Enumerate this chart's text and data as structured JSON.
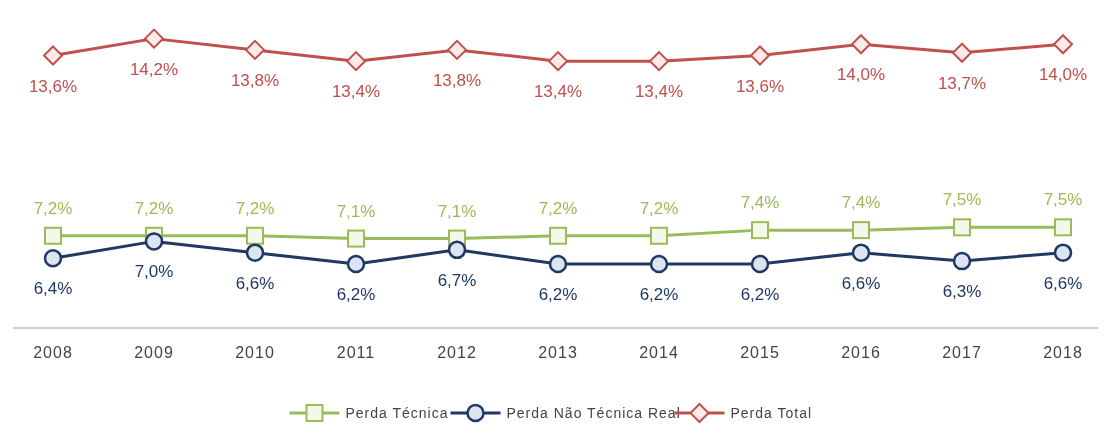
{
  "chart_data": {
    "type": "line",
    "categories": [
      "2008",
      "2009",
      "2010",
      "2011",
      "2012",
      "2013",
      "2014",
      "2015",
      "2016",
      "2017",
      "2018"
    ],
    "series": [
      {
        "name": "Perda Técnica",
        "color": "#9bbb59",
        "marker": "square",
        "values": [
          7.2,
          7.2,
          7.2,
          7.1,
          7.1,
          7.2,
          7.2,
          7.4,
          7.4,
          7.5,
          7.5
        ],
        "value_labels": [
          "7,2%",
          "7,2%",
          "7,2%",
          "7,1%",
          "7,1%",
          "7,2%",
          "7,2%",
          "7,4%",
          "7,4%",
          "7,5%",
          "7,5%"
        ]
      },
      {
        "name": "Perda Não Técnica Real",
        "color": "#1f3864",
        "marker": "circle",
        "values": [
          6.4,
          7.0,
          6.6,
          6.2,
          6.7,
          6.2,
          6.2,
          6.2,
          6.6,
          6.3,
          6.6
        ],
        "value_labels": [
          "6,4%",
          "7,0%",
          "6,6%",
          "6,2%",
          "6,7%",
          "6,2%",
          "6,2%",
          "6,2%",
          "6,6%",
          "6,3%",
          "6,6%"
        ]
      },
      {
        "name": "Perda Total",
        "color": "#c0504d",
        "marker": "diamond",
        "values": [
          13.6,
          14.2,
          13.8,
          13.4,
          13.8,
          13.4,
          13.4,
          13.6,
          14.0,
          13.7,
          14.0
        ],
        "value_labels": [
          "13,6%",
          "14,2%",
          "13,8%",
          "13,4%",
          "13,8%",
          "13,4%",
          "13,4%",
          "13,6%",
          "14,0%",
          "13,7%",
          "14,0%"
        ]
      }
    ],
    "legend": "bottom",
    "grid": false
  }
}
